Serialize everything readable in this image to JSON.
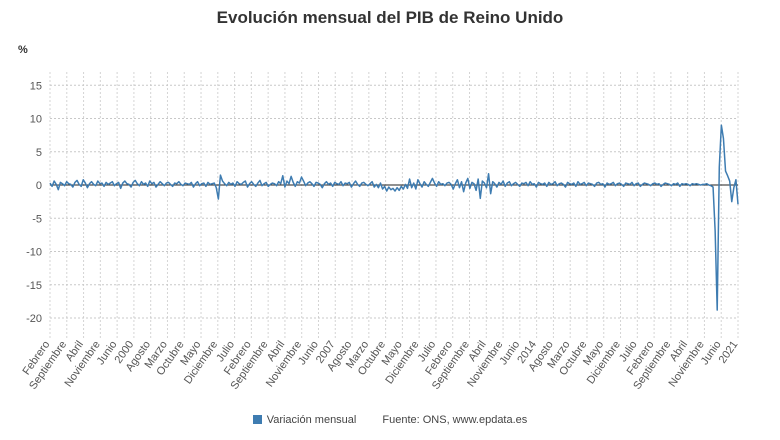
{
  "chart_data": {
    "type": "line",
    "title": "Evolución mensual del PIB de Reino Unido",
    "unit": "%",
    "ylim": [
      -23,
      17
    ],
    "yticks": [
      15,
      10,
      5,
      0,
      -5,
      -10,
      -15,
      -20
    ],
    "grid": true,
    "legend_position": "bottom",
    "x_tick_labels": [
      "Febrero",
      "Septiembre",
      "Abril",
      "Noviembre",
      "Junio",
      "2000",
      "Agosto",
      "Marzo",
      "Octubre",
      "Mayo",
      "Diciembre",
      "Julio",
      "Febrero",
      "Septiembre",
      "Abril",
      "Noviembre",
      "Junio",
      "2007",
      "Agosto",
      "Marzo",
      "Octubre",
      "Mayo",
      "Diciembre",
      "Julio",
      "Febrero",
      "Septiembre",
      "Abril",
      "Noviembre",
      "Junio",
      "2014",
      "Agosto",
      "Marzo",
      "Octubre",
      "Mayo",
      "Diciembre",
      "Julio",
      "Febrero",
      "Septiembre",
      "Abril",
      "Noviembre",
      "Junio",
      "2021"
    ],
    "series": [
      {
        "name": "Variación mensual",
        "color": "#3e7cb1",
        "values": [
          0.3,
          -0.2,
          0.6,
          0.1,
          -0.7,
          0.4,
          0.2,
          -0.1,
          0.5,
          0.2,
          0.1,
          -0.3,
          0.4,
          0.7,
          0.1,
          -0.2,
          0.8,
          0.3,
          -0.4,
          0.2,
          0.5,
          0.1,
          -0.1,
          0.6,
          0.2,
          0.3,
          -0.2,
          0.4,
          0.1,
          0.3,
          0.5,
          -0.1,
          0.2,
          0.4,
          -0.5,
          0.3,
          0.6,
          0.2,
          0.1,
          -0.3,
          0.4,
          0.7,
          0.2,
          -0.1,
          0.5,
          0.1,
          0.3,
          -0.2,
          0.6,
          0.2,
          0.4,
          -0.3,
          0.1,
          0.5,
          0.2,
          -0.1,
          0.3,
          0.4,
          0.1,
          -0.2,
          0.3,
          0.2,
          0.5,
          0.1,
          -0.1,
          0.3,
          0.2,
          0.1,
          0.4,
          -0.3,
          0.2,
          0.5,
          -0.1,
          0.2,
          0.3,
          -0.2,
          0.4,
          0.1,
          0.2,
          0.3,
          -0.4,
          -2.1,
          1.5,
          0.6,
          0.2,
          -0.1,
          0.4,
          0.1,
          0.3,
          -0.2,
          0.5,
          0.2,
          0.1,
          0.4,
          0.6,
          -0.3,
          0.2,
          0.5,
          0.1,
          -0.2,
          0.3,
          0.7,
          -0.1,
          0.2,
          0.4,
          -0.2,
          0.1,
          0.3,
          0.2,
          -0.1,
          0.5,
          0.2,
          1.4,
          -0.3,
          0.6,
          0.2,
          1.3,
          0.4,
          -0.2,
          0.5,
          0.3,
          1.2,
          0.6,
          -0.1,
          0.3,
          0.5,
          0.2,
          -0.2,
          0.4,
          0.3,
          0.1,
          -0.4,
          0.2,
          0.5,
          0.1,
          0.3,
          -0.2,
          0.4,
          0.2,
          0.1,
          0.5,
          -0.1,
          0.3,
          0.2,
          0.4,
          -0.3,
          0.2,
          0.6,
          0.1,
          -0.2,
          0.3,
          0.4,
          0.1,
          -0.1,
          0.2,
          0.5,
          -0.3,
          0.1,
          -0.4,
          0.3,
          -0.6,
          -0.2,
          -0.9,
          -0.3,
          -0.7,
          -0.5,
          -0.9,
          -0.4,
          -0.8,
          -0.2,
          -0.6,
          0.1,
          -0.5,
          0.9,
          -0.4,
          0.3,
          -0.6,
          0.8,
          0.2,
          -0.3,
          0.5,
          0.1,
          -0.2,
          0.4,
          1.0,
          0.3,
          -0.2,
          0.5,
          0.1,
          0.2,
          -0.1,
          0.3,
          0.4,
          0.1,
          -0.6,
          0.2,
          0.8,
          -0.4,
          0.5,
          -1.0,
          0.3,
          1.0,
          -0.5,
          0.4,
          0.2,
          -0.8,
          0.9,
          -2.0,
          0.6,
          0.3,
          -0.4,
          1.7,
          -1.3,
          0.5,
          0.2,
          -0.3,
          0.4,
          0.1,
          0.6,
          -0.2,
          0.3,
          0.5,
          -0.1,
          0.2,
          0.4,
          0.1,
          -0.2,
          0.3,
          0.2,
          0.4,
          -0.1,
          0.5,
          0.1,
          0.2,
          -0.3,
          0.4,
          0.2,
          0.1,
          0.3,
          -0.2,
          0.4,
          0.1,
          0.2,
          0.5,
          -0.1,
          0.2,
          0.3,
          0.1,
          -0.3,
          0.4,
          0.2,
          0.1,
          0.3,
          -0.2,
          0.5,
          0.1,
          0.2,
          0.4,
          -0.1,
          0.3,
          0.2,
          0.1,
          -0.2,
          0.3,
          0.4,
          0.1,
          0.2,
          -0.3,
          0.3,
          0.1,
          0.2,
          0.4,
          -0.1,
          0.2,
          0.3,
          0.1,
          -0.2,
          0.3,
          0.2,
          0.1,
          0.4,
          -0.1,
          0.2,
          0.3,
          -0.2,
          0.1,
          0.3,
          0.2,
          0.1,
          -0.1,
          0.2,
          0.3,
          0.1,
          0.2,
          -0.2,
          0.1,
          0.3,
          0.2,
          0.1,
          -0.1,
          0.2,
          0.1,
          0.3,
          -0.2,
          0.2,
          0.1,
          0.2,
          0.1,
          -0.1,
          0.2,
          0.1,
          0.2,
          0.1,
          0.0,
          0.1,
          0.1,
          0.2,
          0.0,
          -0.1,
          -0.3,
          -6.9,
          -18.8,
          2.7,
          9.0,
          7.0,
          2.1,
          1.4,
          0.6,
          -2.5,
          -0.4,
          0.8,
          -2.9
        ]
      }
    ]
  },
  "legend": {
    "series_label": "Variación mensual",
    "source": "Fuente: ONS, www.epdata.es"
  }
}
